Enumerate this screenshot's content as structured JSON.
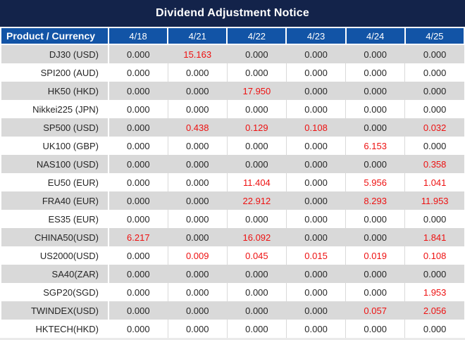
{
  "title": "Dividend Adjustment Notice",
  "colors": {
    "title_bg": "#13234A",
    "header_bg": "#1254A6",
    "alt_row_bg": "#D9D9D9",
    "red_value": "#EE1111",
    "text": "#262626",
    "grid_line": "#D9D9D9",
    "bottom_edge": "#EAEAEA"
  },
  "table": {
    "product_header": "Product / Currency",
    "date_headers": [
      "4/18",
      "4/21",
      "4/22",
      "4/23",
      "4/24",
      "4/25"
    ],
    "rows": [
      {
        "product": "DJ30 (USD)",
        "values": [
          "0.000",
          "15.163",
          "0.000",
          "0.000",
          "0.000",
          "0.000"
        ],
        "red": [
          1
        ]
      },
      {
        "product": "SPI200 (AUD)",
        "values": [
          "0.000",
          "0.000",
          "0.000",
          "0.000",
          "0.000",
          "0.000"
        ],
        "red": []
      },
      {
        "product": "HK50 (HKD)",
        "values": [
          "0.000",
          "0.000",
          "17.950",
          "0.000",
          "0.000",
          "0.000"
        ],
        "red": [
          2
        ]
      },
      {
        "product": "Nikkei225 (JPN)",
        "values": [
          "0.000",
          "0.000",
          "0.000",
          "0.000",
          "0.000",
          "0.000"
        ],
        "red": []
      },
      {
        "product": "SP500 (USD)",
        "values": [
          "0.000",
          "0.438",
          "0.129",
          "0.108",
          "0.000",
          "0.032"
        ],
        "red": [
          1,
          2,
          3,
          5
        ]
      },
      {
        "product": "UK100 (GBP)",
        "values": [
          "0.000",
          "0.000",
          "0.000",
          "0.000",
          "6.153",
          "0.000"
        ],
        "red": [
          4
        ]
      },
      {
        "product": "NAS100 (USD)",
        "values": [
          "0.000",
          "0.000",
          "0.000",
          "0.000",
          "0.000",
          "0.358"
        ],
        "red": [
          5
        ]
      },
      {
        "product": "EU50 (EUR)",
        "values": [
          "0.000",
          "0.000",
          "11.404",
          "0.000",
          "5.956",
          "1.041"
        ],
        "red": [
          2,
          4,
          5
        ]
      },
      {
        "product": "FRA40 (EUR)",
        "values": [
          "0.000",
          "0.000",
          "22.912",
          "0.000",
          "8.293",
          "11.953"
        ],
        "red": [
          2,
          4,
          5
        ]
      },
      {
        "product": "ES35 (EUR)",
        "values": [
          "0.000",
          "0.000",
          "0.000",
          "0.000",
          "0.000",
          "0.000"
        ],
        "red": []
      },
      {
        "product": "CHINA50(USD)",
        "values": [
          "6.217",
          "0.000",
          "16.092",
          "0.000",
          "0.000",
          "1.841"
        ],
        "red": [
          0,
          2,
          5
        ]
      },
      {
        "product": "US2000(USD)",
        "values": [
          "0.000",
          "0.009",
          "0.045",
          "0.015",
          "0.019",
          "0.108"
        ],
        "red": [
          1,
          2,
          3,
          4,
          5
        ]
      },
      {
        "product": "SA40(ZAR)",
        "values": [
          "0.000",
          "0.000",
          "0.000",
          "0.000",
          "0.000",
          "0.000"
        ],
        "red": []
      },
      {
        "product": "SGP20(SGD)",
        "values": [
          "0.000",
          "0.000",
          "0.000",
          "0.000",
          "0.000",
          "1.953"
        ],
        "red": [
          5
        ]
      },
      {
        "product": "TWINDEX(USD)",
        "values": [
          "0.000",
          "0.000",
          "0.000",
          "0.000",
          "0.057",
          "2.056"
        ],
        "red": [
          4,
          5
        ]
      },
      {
        "product": "HKTECH(HKD)",
        "values": [
          "0.000",
          "0.000",
          "0.000",
          "0.000",
          "0.000",
          "0.000"
        ],
        "red": []
      }
    ]
  }
}
